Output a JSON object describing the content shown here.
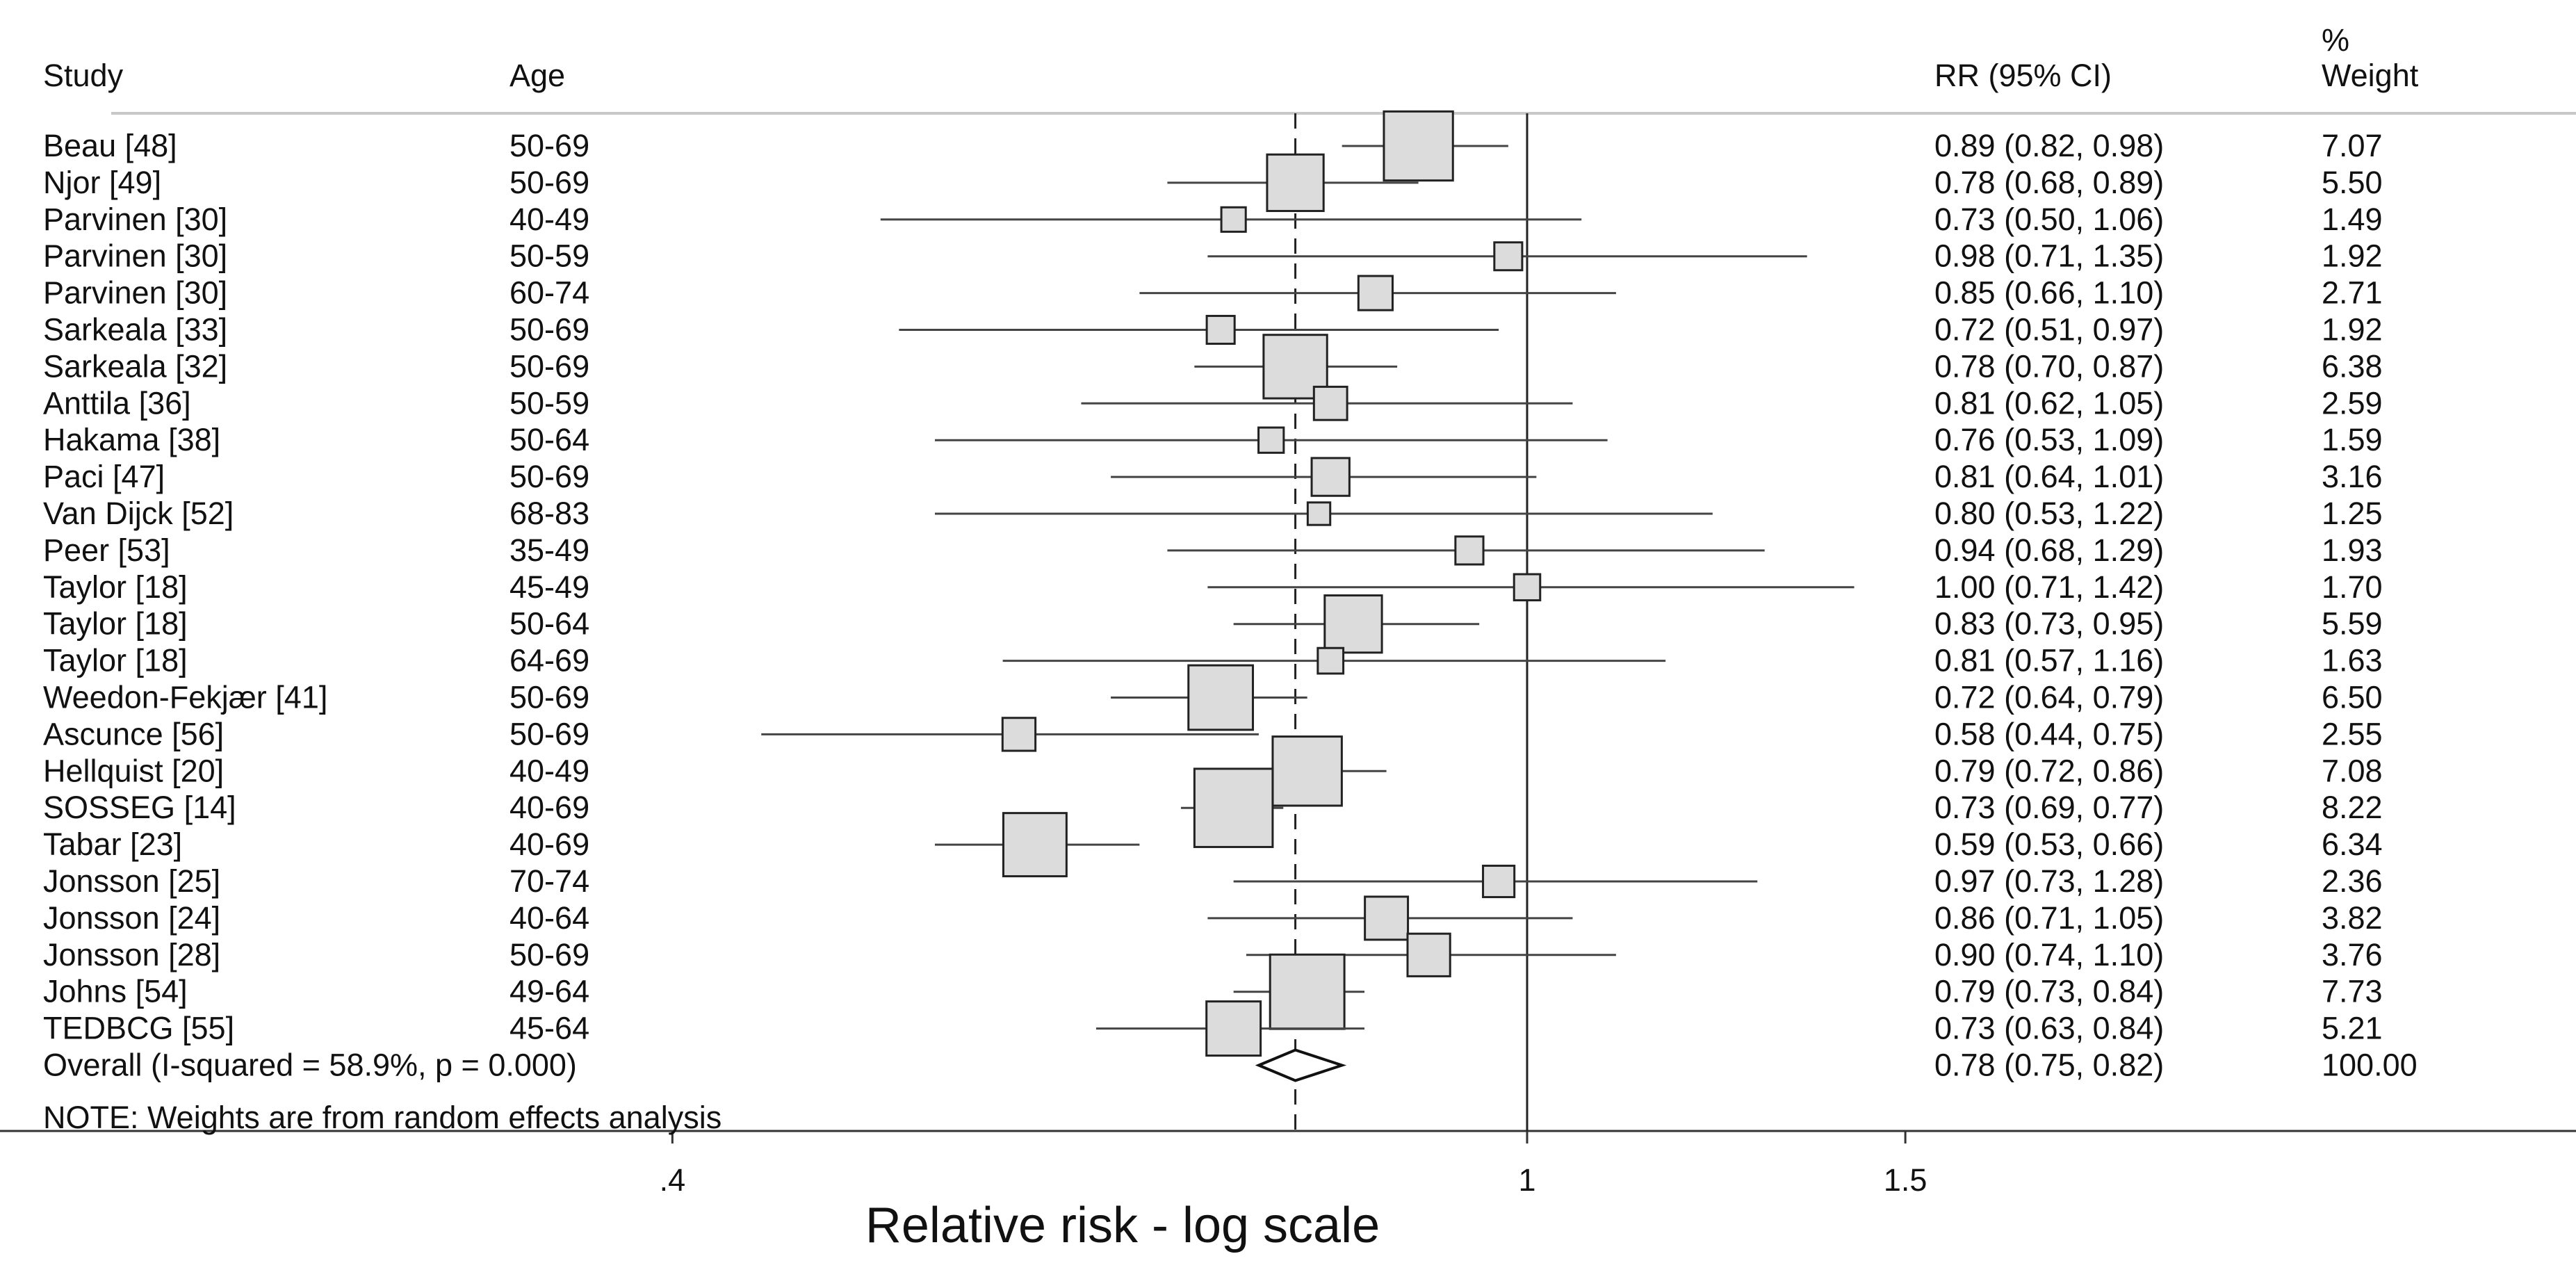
{
  "chart_data": {
    "type": "forest",
    "scale": "log",
    "columns": {
      "study": "Study",
      "age": "Age",
      "rr_ci": "RR (95% CI)",
      "weight_line1": "%",
      "weight_line2": "Weight"
    },
    "studies": [
      {
        "study": "Beau [48]",
        "age": "50-69",
        "rr": 0.89,
        "lo": 0.82,
        "hi": 0.98,
        "rr_text": "0.89 (0.82, 0.98)",
        "weight": "7.07"
      },
      {
        "study": "Njor [49]",
        "age": "50-69",
        "rr": 0.78,
        "lo": 0.68,
        "hi": 0.89,
        "rr_text": "0.78 (0.68, 0.89)",
        "weight": "5.50"
      },
      {
        "study": "Parvinen [30]",
        "age": "40-49",
        "rr": 0.73,
        "lo": 0.5,
        "hi": 1.06,
        "rr_text": "0.73 (0.50, 1.06)",
        "weight": "1.49"
      },
      {
        "study": "Parvinen [30]",
        "age": "50-59",
        "rr": 0.98,
        "lo": 0.71,
        "hi": 1.35,
        "rr_text": "0.98 (0.71, 1.35)",
        "weight": "1.92"
      },
      {
        "study": "Parvinen [30]",
        "age": "60-74",
        "rr": 0.85,
        "lo": 0.66,
        "hi": 1.1,
        "rr_text": "0.85 (0.66, 1.10)",
        "weight": "2.71"
      },
      {
        "study": "Sarkeala [33]",
        "age": "50-69",
        "rr": 0.72,
        "lo": 0.51,
        "hi": 0.97,
        "rr_text": "0.72 (0.51, 0.97)",
        "weight": "1.92"
      },
      {
        "study": "Sarkeala [32]",
        "age": "50-69",
        "rr": 0.78,
        "lo": 0.7,
        "hi": 0.87,
        "rr_text": "0.78 (0.70, 0.87)",
        "weight": "6.38"
      },
      {
        "study": "Anttila [36]",
        "age": "50-59",
        "rr": 0.81,
        "lo": 0.62,
        "hi": 1.05,
        "rr_text": "0.81 (0.62, 1.05)",
        "weight": "2.59"
      },
      {
        "study": "Hakama [38]",
        "age": "50-64",
        "rr": 0.76,
        "lo": 0.53,
        "hi": 1.09,
        "rr_text": "0.76 (0.53, 1.09)",
        "weight": "1.59"
      },
      {
        "study": "Paci [47]",
        "age": "50-69",
        "rr": 0.81,
        "lo": 0.64,
        "hi": 1.01,
        "rr_text": "0.81 (0.64, 1.01)",
        "weight": "3.16"
      },
      {
        "study": "Van Dijck [52]",
        "age": "68-83",
        "rr": 0.8,
        "lo": 0.53,
        "hi": 1.22,
        "rr_text": "0.80 (0.53, 1.22)",
        "weight": "1.25"
      },
      {
        "study": "Peer [53]",
        "age": "35-49",
        "rr": 0.94,
        "lo": 0.68,
        "hi": 1.29,
        "rr_text": "0.94 (0.68, 1.29)",
        "weight": "1.93"
      },
      {
        "study": "Taylor [18]",
        "age": "45-49",
        "rr": 1.0,
        "lo": 0.71,
        "hi": 1.42,
        "rr_text": "1.00 (0.71, 1.42)",
        "weight": "1.70"
      },
      {
        "study": "Taylor [18]",
        "age": "50-64",
        "rr": 0.83,
        "lo": 0.73,
        "hi": 0.95,
        "rr_text": "0.83 (0.73, 0.95)",
        "weight": "5.59"
      },
      {
        "study": "Taylor [18]",
        "age": "64-69",
        "rr": 0.81,
        "lo": 0.57,
        "hi": 1.16,
        "rr_text": "0.81 (0.57, 1.16)",
        "weight": "1.63"
      },
      {
        "study": "Weedon-Fekjær [41]",
        "age": "50-69",
        "rr": 0.72,
        "lo": 0.64,
        "hi": 0.79,
        "rr_text": "0.72 (0.64, 0.79)",
        "weight": "6.50"
      },
      {
        "study": "Ascunce [56]",
        "age": "50-69",
        "rr": 0.58,
        "lo": 0.44,
        "hi": 0.75,
        "rr_text": "0.58 (0.44, 0.75)",
        "weight": "2.55"
      },
      {
        "study": "Hellquist [20]",
        "age": "40-49",
        "rr": 0.79,
        "lo": 0.72,
        "hi": 0.86,
        "rr_text": "0.79 (0.72, 0.86)",
        "weight": "7.08"
      },
      {
        "study": "SOSSEG [14]",
        "age": "40-69",
        "rr": 0.73,
        "lo": 0.69,
        "hi": 0.77,
        "rr_text": "0.73 (0.69, 0.77)",
        "weight": "8.22"
      },
      {
        "study": "Tabar [23]",
        "age": "40-69",
        "rr": 0.59,
        "lo": 0.53,
        "hi": 0.66,
        "rr_text": "0.59 (0.53, 0.66)",
        "weight": "6.34"
      },
      {
        "study": "Jonsson [25]",
        "age": "70-74",
        "rr": 0.97,
        "lo": 0.73,
        "hi": 1.28,
        "rr_text": "0.97 (0.73, 1.28)",
        "weight": "2.36"
      },
      {
        "study": "Jonsson [24]",
        "age": "40-64",
        "rr": 0.86,
        "lo": 0.71,
        "hi": 1.05,
        "rr_text": "0.86 (0.71, 1.05)",
        "weight": "3.82"
      },
      {
        "study": "Jonsson [28]",
        "age": "50-69",
        "rr": 0.9,
        "lo": 0.74,
        "hi": 1.1,
        "rr_text": "0.90 (0.74, 1.10)",
        "weight": "3.76"
      },
      {
        "study": "Johns [54]",
        "age": "49-64",
        "rr": 0.79,
        "lo": 0.73,
        "hi": 0.84,
        "rr_text": "0.79 (0.73, 0.84)",
        "weight": "7.73"
      },
      {
        "study": "TEDBCG [55]",
        "age": "45-64",
        "rr": 0.73,
        "lo": 0.63,
        "hi": 0.84,
        "rr_text": "0.73 (0.63, 0.84)",
        "weight": "5.21"
      }
    ],
    "overall": {
      "label": "Overall  (I-squared = 58.9%, p = 0.000)",
      "rr": 0.78,
      "lo": 0.75,
      "hi": 0.82,
      "rr_text": "0.78 (0.75, 0.82)",
      "weight": "100.00"
    },
    "note": "NOTE: Weights are from random effects analysis",
    "xticks": [
      {
        "value": 0.4,
        "label": ".4"
      },
      {
        "value": 1,
        "label": "1"
      },
      {
        "value": 1.5,
        "label": "1.5"
      }
    ],
    "null_value": 1,
    "xlabel": "Relative risk - log scale"
  }
}
